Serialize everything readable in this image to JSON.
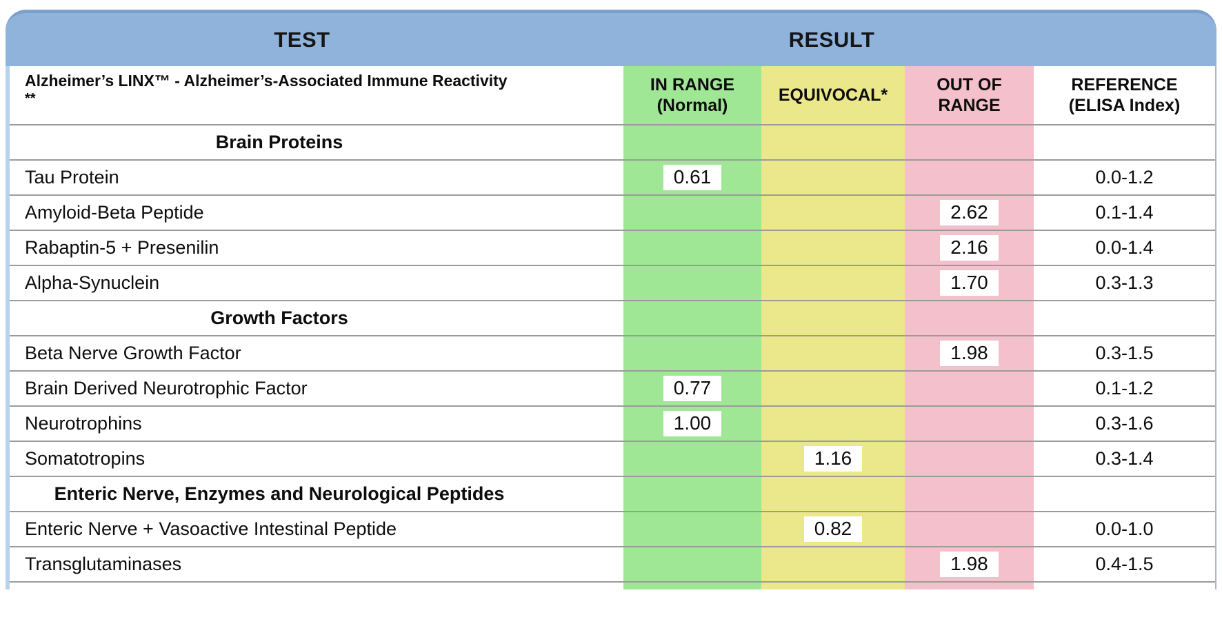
{
  "header": {
    "test_label": "TEST",
    "result_label": "RESULT"
  },
  "columns": {
    "test_title": "Alzheimer’s LINX™ - Alzheimer’s-Associated Immune Reactivity",
    "test_title_suffix": "**",
    "in_range_line1": "IN RANGE",
    "in_range_line2": "(Normal)",
    "equivocal": "EQUIVOCAL*",
    "out_of_range_line1": "OUT OF",
    "out_of_range_line2": "RANGE",
    "reference_line1": "REFERENCE",
    "reference_line2": "(ELISA Index)"
  },
  "colors": {
    "header_blue": "#8fb3db",
    "header_blue_border": "#7ba0cb",
    "in_range_green": "#9fe795",
    "equivocal_yellow": "#ebe78b",
    "out_of_range_pink": "#f4c0cb"
  },
  "chart_data": {
    "type": "table",
    "title": "Alzheimer’s LINX™ - Alzheimer’s-Associated Immune Reactivity **",
    "columns": [
      "TEST",
      "IN RANGE (Normal)",
      "EQUIVOCAL*",
      "OUT OF RANGE",
      "REFERENCE (ELISA Index)"
    ]
  },
  "rows": [
    {
      "type": "section",
      "label": "Brain Proteins"
    },
    {
      "type": "test",
      "label": "Tau Protein",
      "value": "0.61",
      "status": "in_range",
      "reference": "0.0-1.2"
    },
    {
      "type": "test",
      "label": "Amyloid-Beta Peptide",
      "value": "2.62",
      "status": "out_of_range",
      "reference": "0.1-1.4"
    },
    {
      "type": "test",
      "label": "Rabaptin-5 + Presenilin",
      "value": "2.16",
      "status": "out_of_range",
      "reference": "0.0-1.4"
    },
    {
      "type": "test",
      "label": "Alpha-Synuclein",
      "value": "1.70",
      "status": "out_of_range",
      "reference": "0.3-1.3"
    },
    {
      "type": "section",
      "label": "Growth Factors"
    },
    {
      "type": "test",
      "label": "Beta Nerve Growth Factor",
      "value": "1.98",
      "status": "out_of_range",
      "reference": "0.3-1.5"
    },
    {
      "type": "test",
      "label": "Brain Derived Neurotrophic Factor",
      "value": "0.77",
      "status": "in_range",
      "reference": "0.1-1.2"
    },
    {
      "type": "test",
      "label": "Neurotrophins",
      "value": "1.00",
      "status": "in_range",
      "reference": "0.3-1.6"
    },
    {
      "type": "test",
      "label": "Somatotropins",
      "value": "1.16",
      "status": "equivocal",
      "reference": "0.3-1.4"
    },
    {
      "type": "section",
      "label": "Enteric Nerve, Enzymes and Neurological Peptides"
    },
    {
      "type": "test",
      "label": "Enteric Nerve + Vasoactive Intestinal Peptide",
      "value": "0.82",
      "status": "equivocal",
      "reference": "0.0-1.0"
    },
    {
      "type": "test",
      "label": "Transglutaminases",
      "value": "1.98",
      "status": "out_of_range",
      "reference": "0.4-1.5"
    }
  ]
}
